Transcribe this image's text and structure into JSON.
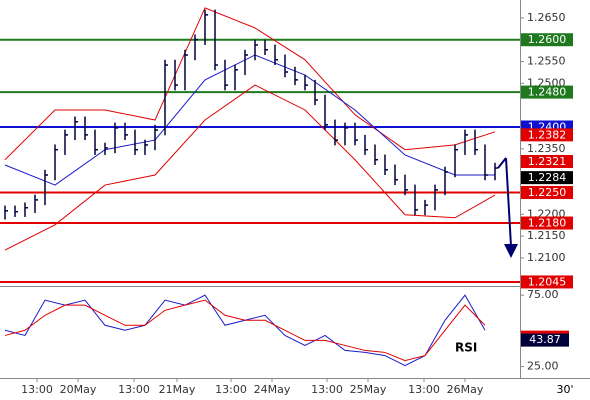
{
  "chart_data": [
    {
      "type": "ohlc",
      "x": [
        0,
        1,
        2,
        3,
        4,
        5,
        6,
        7,
        8,
        9,
        10,
        11,
        12,
        13,
        14,
        15,
        16,
        17,
        18,
        19,
        20,
        21,
        22,
        23,
        24,
        25,
        26,
        27,
        28,
        29,
        30,
        31,
        32,
        33,
        34,
        35,
        36,
        37,
        38,
        39,
        40,
        41,
        42,
        43,
        44,
        45,
        46,
        47,
        48,
        49
      ],
      "high": [
        1.222,
        1.222,
        1.2227,
        1.2245,
        1.2302,
        1.236,
        1.2394,
        1.2424,
        1.2424,
        1.2394,
        1.2364,
        1.241,
        1.241,
        1.2394,
        1.2371,
        1.2405,
        1.2554,
        1.2554,
        1.2577,
        1.2612,
        1.2669,
        1.2669,
        1.2554,
        1.2543,
        1.2577,
        1.26,
        1.26,
        1.2589,
        1.2566,
        1.2538,
        1.252,
        1.2508,
        1.2474,
        1.2417,
        1.241,
        1.241,
        1.2382,
        1.236,
        1.2337,
        1.2314,
        1.2291,
        1.2268,
        1.2233,
        1.2268,
        1.2309,
        1.236,
        1.2394,
        1.2394,
        1.236,
        1.2318
      ],
      "low": [
        1.2188,
        1.2194,
        1.2194,
        1.2203,
        1.2221,
        1.2278,
        1.2336,
        1.237,
        1.237,
        1.2336,
        1.2336,
        1.234,
        1.237,
        1.2336,
        1.2336,
        1.2347,
        1.2381,
        1.2484,
        1.2484,
        1.2553,
        1.2588,
        1.253,
        1.2484,
        1.2484,
        1.2519,
        1.2553,
        1.2565,
        1.2542,
        1.2514,
        1.2496,
        1.2484,
        1.245,
        1.2393,
        1.2358,
        1.2358,
        1.2358,
        1.2336,
        1.2313,
        1.229,
        1.2267,
        1.2244,
        1.2198,
        1.2198,
        1.2209,
        1.2244,
        1.2285,
        1.2336,
        1.2336,
        1.2278,
        1.2278
      ],
      "close": [
        1.2208,
        1.2206,
        1.2215,
        1.2233,
        1.229,
        1.2348,
        1.2382,
        1.2412,
        1.2382,
        1.2348,
        1.2352,
        1.2398,
        1.2382,
        1.2348,
        1.2359,
        1.2393,
        1.2542,
        1.2496,
        1.2565,
        1.26,
        1.2657,
        1.2542,
        1.2496,
        1.2531,
        1.2565,
        1.2588,
        1.2577,
        1.2554,
        1.2526,
        1.2508,
        1.2496,
        1.2462,
        1.2405,
        1.237,
        1.2398,
        1.237,
        1.2348,
        1.2325,
        1.2302,
        1.2279,
        1.2256,
        1.221,
        1.2221,
        1.2256,
        1.2297,
        1.2348,
        1.2382,
        1.2348,
        1.229,
        1.2306
      ],
      "bar_color": "#00003a",
      "bands": {
        "x": [
          0,
          5,
          10,
          15,
          20,
          25,
          30,
          35,
          40,
          45,
          49
        ],
        "series": [
          {
            "color": "#e00000",
            "values": [
              1.2325,
              1.2439,
              1.2439,
              1.2416,
              1.2673,
              1.2627,
              1.2554,
              1.2428,
              1.2348,
              1.2359,
              1.2389
            ]
          },
          {
            "color": "#1a1acc",
            "values": [
              1.2313,
              1.2267,
              1.2348,
              1.237,
              1.2508,
              1.2565,
              1.2519,
              1.2439,
              1.2336,
              1.229,
              1.229
            ]
          },
          {
            "color": "#e00000",
            "values": [
              1.2118,
              1.2176,
              1.2267,
              1.229,
              1.2416,
              1.2496,
              1.2439,
              1.2325,
              1.2199,
              1.2192,
              1.2244
            ]
          }
        ]
      },
      "levels": [
        {
          "value": 1.26,
          "label": "1.2600",
          "color": "#1f7a1f",
          "line": true
        },
        {
          "value": 1.248,
          "label": "1.2480",
          "color": "#1f7a1f",
          "line": true
        },
        {
          "value": 1.24,
          "label": "1.2400",
          "color": "#1010d0",
          "line": true
        },
        {
          "value": 1.2382,
          "label": "1.2382",
          "color": "#e00000",
          "line": false
        },
        {
          "value": 1.2321,
          "label": "1.2321",
          "color": "#e00000",
          "line": false
        },
        {
          "value": 1.2284,
          "label": "1.2284",
          "color": "#000000",
          "line": false
        },
        {
          "value": 1.225,
          "label": "1.2250",
          "color": "#e00000",
          "line": true
        },
        {
          "value": 1.218,
          "label": "1.2180",
          "color": "#e00000",
          "line": true
        },
        {
          "value": 1.2045,
          "label": "1.2045",
          "color": "#e00000",
          "line": true
        }
      ],
      "xlim": [
        -0.5,
        51.5
      ],
      "ylim": [
        1.2038,
        1.2691
      ],
      "yticks": [
        {
          "value": 1.265,
          "label": "1.2650"
        },
        {
          "value": 1.255,
          "label": "1.2550"
        },
        {
          "value": 1.25,
          "label": "1.2500"
        },
        {
          "value": 1.235,
          "label": "1.2350"
        },
        {
          "value": 1.22,
          "label": "1.2200"
        },
        {
          "value": 1.215,
          "label": "1.2150"
        },
        {
          "value": 1.21,
          "label": "1.2100"
        }
      ],
      "xticks": [
        {
          "value": 3.2,
          "label": "13:00"
        },
        {
          "value": 7.3,
          "label": "20May"
        },
        {
          "value": 12.9,
          "label": "13:00"
        },
        {
          "value": 17.2,
          "label": "21May"
        },
        {
          "value": 22.6,
          "label": "13:00"
        },
        {
          "value": 26.7,
          "label": "24May"
        },
        {
          "value": 32.2,
          "label": "13:00"
        },
        {
          "value": 36.3,
          "label": "25May"
        },
        {
          "value": 41.9,
          "label": "13:00"
        },
        {
          "value": 46,
          "label": "26May"
        }
      ],
      "timeframe": "30'"
    },
    {
      "type": "line",
      "title": "RSI",
      "x": [
        0,
        2,
        4,
        6,
        8,
        10,
        12,
        14,
        16,
        18,
        20,
        22,
        24,
        26,
        28,
        30,
        32,
        34,
        36,
        38,
        40,
        42,
        44,
        46,
        48
      ],
      "series": [
        {
          "color": "#1a1acc",
          "values": [
            50.4,
            46.8,
            71.5,
            68.0,
            71.5,
            53.9,
            50.4,
            53.9,
            71.5,
            68.0,
            75.0,
            53.9,
            57.4,
            60.9,
            46.8,
            39.8,
            46.8,
            36.3,
            34.9,
            32.7,
            25.7,
            32.7,
            57.4,
            75.0,
            50.4
          ]
        },
        {
          "color": "#e00000",
          "values": [
            46.8,
            50.4,
            60.9,
            68.0,
            68.0,
            60.9,
            53.9,
            53.9,
            64.4,
            68.0,
            71.5,
            60.9,
            57.4,
            57.4,
            50.4,
            43.3,
            43.3,
            39.8,
            36.3,
            34.9,
            29.2,
            32.7,
            50.4,
            68.0,
            53.9
          ]
        }
      ],
      "current": {
        "value": 43.87,
        "label": "43.87"
      },
      "xlim": [
        -0.5,
        51.5
      ],
      "ylim": [
        17,
        80
      ],
      "yticks": [
        {
          "value": 75,
          "label": "75.00"
        },
        {
          "value": 25,
          "label": "25.00"
        }
      ]
    }
  ]
}
